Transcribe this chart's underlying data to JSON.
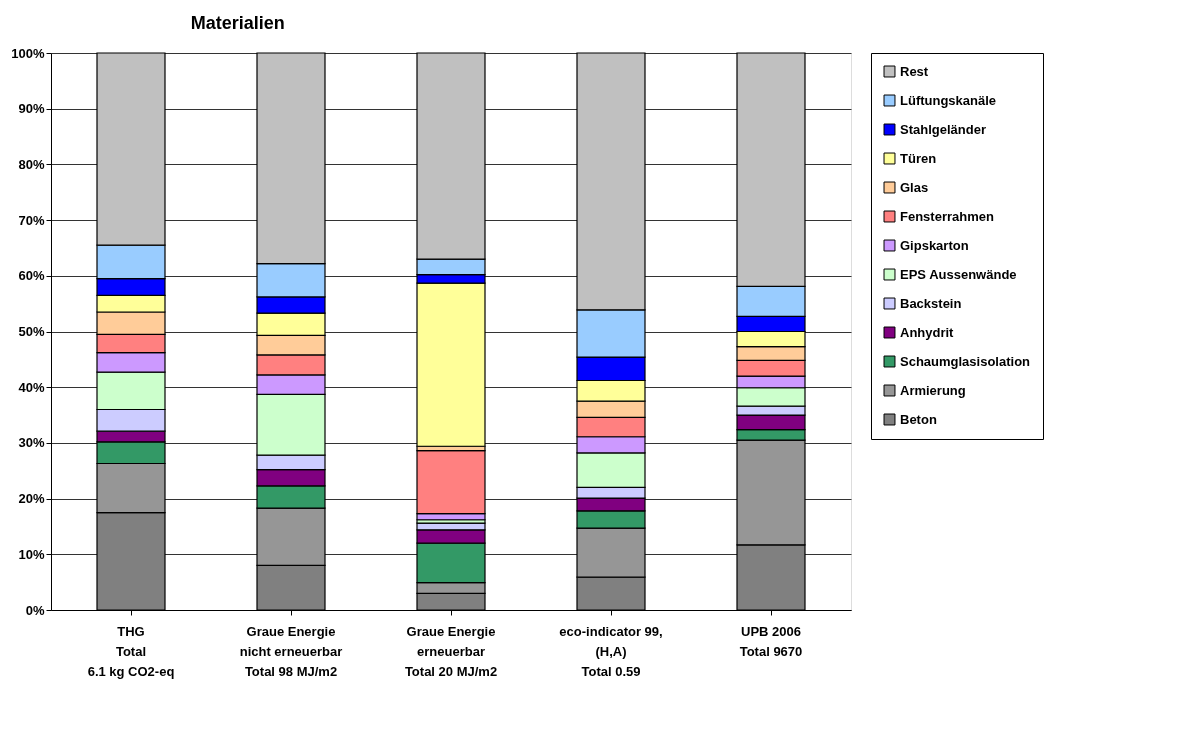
{
  "chart_data": {
    "type": "bar",
    "title": "Materialien",
    "stacked": true,
    "categories": [
      "THG\nTotal\n6.1 kg CO2-eq",
      "Graue Energie\nnicht erneuerbar\nTotal 98 MJ/m2",
      "Graue Energie\nerneuerbar\nTotal 20 MJ/m2",
      "eco-indicator 99,\n(H,A)\nTotal 0.59",
      "UPB 2006\n\nTotal 9670"
    ],
    "series": [
      {
        "name": "Beton",
        "color": "#808080",
        "values": [
          17.5,
          8,
          3,
          5.9,
          11.7
        ]
      },
      {
        "name": "Armierung",
        "color": "#969696",
        "values": [
          8.8,
          10.3,
          1.9,
          8.8,
          18.8
        ]
      },
      {
        "name": "Schaumglasisolation",
        "color": "#339966",
        "values": [
          3.9,
          4.0,
          7.1,
          3.1,
          1.9
        ]
      },
      {
        "name": "Anhydrit",
        "color": "#800080",
        "values": [
          1.9,
          2.9,
          2.4,
          2.3,
          2.6
        ]
      },
      {
        "name": "Backstein",
        "color": "#ccccff",
        "values": [
          3.9,
          2.6,
          1.2,
          1.9,
          1.6
        ]
      },
      {
        "name": "EPS Aussenwände",
        "color": "#ccffcc",
        "values": [
          6.7,
          10.9,
          0.6,
          6.2,
          3.3
        ]
      },
      {
        "name": "Gipskarton",
        "color": "#cc99ff",
        "values": [
          3.5,
          3.5,
          1.1,
          2.9,
          2.1
        ]
      },
      {
        "name": "Fensterrahmen",
        "color": "#ff8080",
        "values": [
          3.3,
          3.6,
          11.3,
          3.5,
          2.8
        ]
      },
      {
        "name": "Glas",
        "color": "#ffcc99",
        "values": [
          4.0,
          3.5,
          0.8,
          2.9,
          2.5
        ]
      },
      {
        "name": "Türen",
        "color": "#ffff99",
        "values": [
          3.0,
          4.0,
          29.3,
          3.7,
          2.7
        ]
      },
      {
        "name": "Stahlgeländer",
        "color": "#0000ff",
        "values": [
          3.0,
          2.9,
          1.5,
          4.2,
          2.7
        ]
      },
      {
        "name": "Lüftungskanäle",
        "color": "#99ccff",
        "values": [
          6.0,
          6.0,
          2.8,
          8.5,
          5.4
        ]
      },
      {
        "name": "Rest",
        "color": "#c0c0c0",
        "values": [
          34.5,
          37.8,
          37,
          46.1,
          41.9
        ]
      }
    ],
    "ylim": [
      0,
      100
    ],
    "yticks": [
      {
        "value": 0,
        "label": "0%"
      },
      {
        "value": 10,
        "label": "10%"
      },
      {
        "value": 20,
        "label": "20%"
      },
      {
        "value": 30,
        "label": "30%"
      },
      {
        "value": 40,
        "label": "40%"
      },
      {
        "value": 50,
        "label": "50%"
      },
      {
        "value": 60,
        "label": "60%"
      },
      {
        "value": 70,
        "label": "70%"
      },
      {
        "value": 80,
        "label": "80%"
      },
      {
        "value": 90,
        "label": "90%"
      },
      {
        "value": 100,
        "label": "100%"
      }
    ],
    "grid": "y",
    "legend": "right"
  }
}
